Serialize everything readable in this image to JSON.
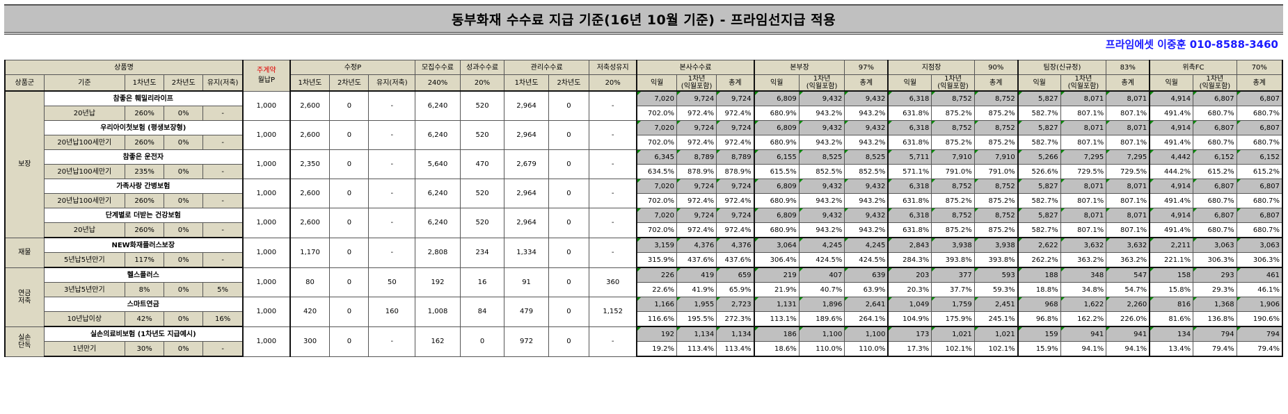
{
  "title": "동부화재 수수료 지급 기준(16년 10월 기준) - 프라임선지급 적용",
  "contact": "프라임에셋 이중훈 010-8588-3460",
  "header": {
    "row1": {
      "product_name": "상품명",
      "main_contract": "주계약",
      "revised_p": "수정P",
      "recruit_fee": "모집수수료",
      "perf_fee": "성과수수료",
      "mgmt_fee": "관리수수료",
      "saving_maint": "저축성유지",
      "hq_fee": "본사수수료",
      "div_head": "본부장",
      "div_pct": "97%",
      "branch_head": "지점장",
      "branch_pct": "90%",
      "team_lead": "팀장(신규정)",
      "team_pct": "83%",
      "fc": "위촉FC",
      "fc_pct": "70%"
    },
    "row2": {
      "group": "상품군",
      "basis": "기준",
      "y1": "1차년도",
      "y2": "2차년도",
      "maint": "유지(저축)",
      "monthly_p": "월납P",
      "rp_y1": "1차년도",
      "rp_y2": "2차년도",
      "rp_maint": "유지(저축)",
      "recruit_pct": "240%",
      "perf_pct": "20%",
      "mgmt_y1": "1차년도",
      "mgmt_y2": "2차년도",
      "saving_pct": "20%",
      "next_month": "익월",
      "first_year_a": "1차년",
      "first_year_b": "(익월포함)",
      "total": "총계"
    }
  },
  "groups": [
    {
      "label1": "보장",
      "label2": ""
    },
    {
      "label1": "재물",
      "label2": ""
    },
    {
      "label1": "연금",
      "label2": "저축"
    },
    {
      "label1": "실손",
      "label2": "단독"
    }
  ],
  "products": [
    {
      "name": "참좋은 훼밀리라이프",
      "basis": "20년납",
      "y1": "260%",
      "y2": "0%",
      "maint": "-",
      "monthly_p": "1,000",
      "rp1": "2,600",
      "rp2": "0",
      "rpm": "-",
      "recruit": "6,240",
      "perf": "520",
      "mg1": "2,964",
      "mg2": "0",
      "sav": "-",
      "vals": [
        "7,020",
        "9,724",
        "9,724",
        "6,809",
        "9,432",
        "9,432",
        "6,318",
        "8,752",
        "8,752",
        "5,827",
        "8,071",
        "8,071",
        "4,914",
        "6,807",
        "6,807"
      ],
      "pcts": [
        "702.0%",
        "972.4%",
        "972.4%",
        "680.9%",
        "943.2%",
        "943.2%",
        "631.8%",
        "875.2%",
        "875.2%",
        "582.7%",
        "807.1%",
        "807.1%",
        "491.4%",
        "680.7%",
        "680.7%"
      ]
    },
    {
      "name": "우리아이첫보험 (평생보장형)",
      "basis": "20년납100세만기",
      "y1": "260%",
      "y2": "0%",
      "maint": "-",
      "monthly_p": "1,000",
      "rp1": "2,600",
      "rp2": "0",
      "rpm": "-",
      "recruit": "6,240",
      "perf": "520",
      "mg1": "2,964",
      "mg2": "0",
      "sav": "-",
      "vals": [
        "7,020",
        "9,724",
        "9,724",
        "6,809",
        "9,432",
        "9,432",
        "6,318",
        "8,752",
        "8,752",
        "5,827",
        "8,071",
        "8,071",
        "4,914",
        "6,807",
        "6,807"
      ],
      "pcts": [
        "702.0%",
        "972.4%",
        "972.4%",
        "680.9%",
        "943.2%",
        "943.2%",
        "631.8%",
        "875.2%",
        "875.2%",
        "582.7%",
        "807.1%",
        "807.1%",
        "491.4%",
        "680.7%",
        "680.7%"
      ]
    },
    {
      "name": "참좋은 운전자",
      "basis": "20년납100세만기",
      "y1": "235%",
      "y2": "0%",
      "maint": "-",
      "monthly_p": "1,000",
      "rp1": "2,350",
      "rp2": "0",
      "rpm": "-",
      "recruit": "5,640",
      "perf": "470",
      "mg1": "2,679",
      "mg2": "0",
      "sav": "-",
      "vals": [
        "6,345",
        "8,789",
        "8,789",
        "6,155",
        "8,525",
        "8,525",
        "5,711",
        "7,910",
        "7,910",
        "5,266",
        "7,295",
        "7,295",
        "4,442",
        "6,152",
        "6,152"
      ],
      "pcts": [
        "634.5%",
        "878.9%",
        "878.9%",
        "615.5%",
        "852.5%",
        "852.5%",
        "571.1%",
        "791.0%",
        "791.0%",
        "526.6%",
        "729.5%",
        "729.5%",
        "444.2%",
        "615.2%",
        "615.2%"
      ]
    },
    {
      "name": "가족사랑 간병보험",
      "basis": "20년납100세만기",
      "y1": "260%",
      "y2": "0%",
      "maint": "-",
      "monthly_p": "1,000",
      "rp1": "2,600",
      "rp2": "0",
      "rpm": "-",
      "recruit": "6,240",
      "perf": "520",
      "mg1": "2,964",
      "mg2": "0",
      "sav": "-",
      "vals": [
        "7,020",
        "9,724",
        "9,724",
        "6,809",
        "9,432",
        "9,432",
        "6,318",
        "8,752",
        "8,752",
        "5,827",
        "8,071",
        "8,071",
        "4,914",
        "6,807",
        "6,807"
      ],
      "pcts": [
        "702.0%",
        "972.4%",
        "972.4%",
        "680.9%",
        "943.2%",
        "943.2%",
        "631.8%",
        "875.2%",
        "875.2%",
        "582.7%",
        "807.1%",
        "807.1%",
        "491.4%",
        "680.7%",
        "680.7%"
      ]
    },
    {
      "name": "단계별로 더받는 건강보험",
      "basis": "20년납",
      "y1": "260%",
      "y2": "0%",
      "maint": "-",
      "monthly_p": "1,000",
      "rp1": "2,600",
      "rp2": "0",
      "rpm": "-",
      "recruit": "6,240",
      "perf": "520",
      "mg1": "2,964",
      "mg2": "0",
      "sav": "-",
      "vals": [
        "7,020",
        "9,724",
        "9,724",
        "6,809",
        "9,432",
        "9,432",
        "6,318",
        "8,752",
        "8,752",
        "5,827",
        "8,071",
        "8,071",
        "4,914",
        "6,807",
        "6,807"
      ],
      "pcts": [
        "702.0%",
        "972.4%",
        "972.4%",
        "680.9%",
        "943.2%",
        "943.2%",
        "631.8%",
        "875.2%",
        "875.2%",
        "582.7%",
        "807.1%",
        "807.1%",
        "491.4%",
        "680.7%",
        "680.7%"
      ]
    },
    {
      "name": "NEW화재플러스보장",
      "basis": "5년납5년만기",
      "y1": "117%",
      "y2": "0%",
      "maint": "-",
      "monthly_p": "1,000",
      "rp1": "1,170",
      "rp2": "0",
      "rpm": "-",
      "recruit": "2,808",
      "perf": "234",
      "mg1": "1,334",
      "mg2": "0",
      "sav": "-",
      "vals": [
        "3,159",
        "4,376",
        "4,376",
        "3,064",
        "4,245",
        "4,245",
        "2,843",
        "3,938",
        "3,938",
        "2,622",
        "3,632",
        "3,632",
        "2,211",
        "3,063",
        "3,063"
      ],
      "pcts": [
        "315.9%",
        "437.6%",
        "437.6%",
        "306.4%",
        "424.5%",
        "424.5%",
        "284.3%",
        "393.8%",
        "393.8%",
        "262.2%",
        "363.2%",
        "363.2%",
        "221.1%",
        "306.3%",
        "306.3%"
      ]
    },
    {
      "name": "헬스플러스",
      "basis": "3년납5년만기",
      "y1": "8%",
      "y2": "0%",
      "maint": "5%",
      "monthly_p": "1,000",
      "rp1": "80",
      "rp2": "0",
      "rpm": "50",
      "recruit": "192",
      "perf": "16",
      "mg1": "91",
      "mg2": "0",
      "sav": "360",
      "vals": [
        "226",
        "419",
        "659",
        "219",
        "407",
        "639",
        "203",
        "377",
        "593",
        "188",
        "348",
        "547",
        "158",
        "293",
        "461"
      ],
      "pcts": [
        "22.6%",
        "41.9%",
        "65.9%",
        "21.9%",
        "40.7%",
        "63.9%",
        "20.3%",
        "37.7%",
        "59.3%",
        "18.8%",
        "34.8%",
        "54.7%",
        "15.8%",
        "29.3%",
        "46.1%"
      ]
    },
    {
      "name": "스마트연금",
      "basis": "10년납이상",
      "y1": "42%",
      "y2": "0%",
      "maint": "16%",
      "monthly_p": "1,000",
      "rp1": "420",
      "rp2": "0",
      "rpm": "160",
      "recruit": "1,008",
      "perf": "84",
      "mg1": "479",
      "mg2": "0",
      "sav": "1,152",
      "vals": [
        "1,166",
        "1,955",
        "2,723",
        "1,131",
        "1,896",
        "2,641",
        "1,049",
        "1,759",
        "2,451",
        "968",
        "1,622",
        "2,260",
        "816",
        "1,368",
        "1,906"
      ],
      "pcts": [
        "116.6%",
        "195.5%",
        "272.3%",
        "113.1%",
        "189.6%",
        "264.1%",
        "104.9%",
        "175.9%",
        "245.1%",
        "96.8%",
        "162.2%",
        "226.0%",
        "81.6%",
        "136.8%",
        "190.6%"
      ]
    },
    {
      "name": "실손의료비보험 (1차년도 지급예시)",
      "basis": "1년만기",
      "y1": "30%",
      "y2": "0%",
      "maint": "-",
      "monthly_p": "1,000",
      "rp1": "300",
      "rp2": "0",
      "rpm": "-",
      "recruit": "162",
      "perf": "0",
      "mg1": "972",
      "mg2": "0",
      "sav": "-",
      "vals": [
        "192",
        "1,134",
        "1,134",
        "186",
        "1,100",
        "1,100",
        "173",
        "1,021",
        "1,021",
        "159",
        "941",
        "941",
        "134",
        "794",
        "794"
      ],
      "pcts": [
        "19.2%",
        "113.4%",
        "113.4%",
        "18.6%",
        "110.0%",
        "110.0%",
        "17.3%",
        "102.1%",
        "102.1%",
        "15.9%",
        "94.1%",
        "94.1%",
        "13.4%",
        "79.4%",
        "79.4%"
      ]
    }
  ],
  "colors": {
    "header_bg": "#ddd9c3",
    "value_bg": "#c0c0c0",
    "title_bg": "#c0c0c0",
    "contact": "#1a1aff",
    "accent_red": "#e00000"
  }
}
